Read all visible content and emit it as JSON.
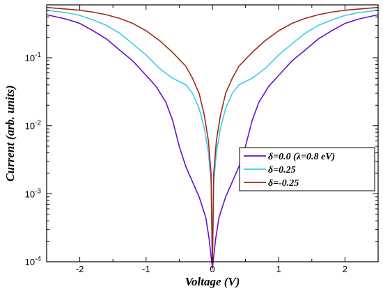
{
  "chart_data": {
    "type": "line",
    "title": "",
    "xlabel": "Voltage (V)",
    "ylabel": "Current (arb. units)",
    "xlim": [
      -2.5,
      2.5
    ],
    "ylim": [
      0.0001,
      0.6
    ],
    "y_scale": "log",
    "x_ticks": [
      {
        "value": -2,
        "label": "-2"
      },
      {
        "value": -1,
        "label": "-1"
      },
      {
        "value": 0,
        "label": "0"
      },
      {
        "value": 1,
        "label": "1"
      },
      {
        "value": 2,
        "label": "2"
      }
    ],
    "y_ticks": [
      {
        "value": 0.0001,
        "base": "10",
        "exp": "-4"
      },
      {
        "value": 0.001,
        "base": "10",
        "exp": "-3"
      },
      {
        "value": 0.01,
        "base": "10",
        "exp": "-2"
      },
      {
        "value": 0.1,
        "base": "10",
        "exp": "-1"
      }
    ],
    "grid": false,
    "legend_position": "lower-right",
    "series": [
      {
        "name": "δ=0.0  (λ=0.8 eV)",
        "color": "#6a0dcc",
        "x": [
          -2.5,
          -2.2,
          -2.0,
          -1.8,
          -1.6,
          -1.4,
          -1.2,
          -1.0,
          -0.85,
          -0.7,
          -0.6,
          -0.5,
          -0.4,
          -0.3,
          -0.2,
          -0.1,
          -0.05,
          0.0,
          0.05,
          0.1,
          0.2,
          0.3,
          0.4,
          0.5,
          0.6,
          0.7,
          0.85,
          1.0,
          1.2,
          1.4,
          1.6,
          1.8,
          2.0,
          2.2,
          2.5
        ],
        "y": [
          0.43,
          0.37,
          0.32,
          0.25,
          0.19,
          0.13,
          0.09,
          0.055,
          0.038,
          0.022,
          0.012,
          0.005,
          0.0025,
          0.0015,
          0.0009,
          0.00045,
          0.00022,
          8e-05,
          0.00022,
          0.00045,
          0.0009,
          0.0015,
          0.0025,
          0.005,
          0.012,
          0.022,
          0.038,
          0.055,
          0.09,
          0.13,
          0.19,
          0.25,
          0.32,
          0.37,
          0.43
        ]
      },
      {
        "name": "δ=0.25",
        "color": "#40c8f0",
        "x": [
          -2.5,
          -2.2,
          -2.0,
          -1.8,
          -1.6,
          -1.4,
          -1.2,
          -1.0,
          -0.8,
          -0.6,
          -0.4,
          -0.3,
          -0.2,
          -0.12,
          -0.06,
          -0.02,
          0.0,
          0.02,
          0.06,
          0.12,
          0.2,
          0.3,
          0.4,
          0.6,
          0.8,
          1.0,
          1.2,
          1.4,
          1.6,
          1.8,
          2.0,
          2.2,
          2.5
        ],
        "y": [
          0.5,
          0.46,
          0.42,
          0.36,
          0.3,
          0.23,
          0.16,
          0.11,
          0.07,
          0.05,
          0.04,
          0.03,
          0.018,
          0.009,
          0.004,
          0.0015,
          8e-05,
          0.0015,
          0.004,
          0.009,
          0.018,
          0.03,
          0.04,
          0.05,
          0.07,
          0.11,
          0.16,
          0.23,
          0.3,
          0.36,
          0.42,
          0.46,
          0.5
        ]
      },
      {
        "name": "δ=-0.25",
        "color": "#a02818",
        "x": [
          -2.5,
          -2.2,
          -2.0,
          -1.8,
          -1.6,
          -1.4,
          -1.2,
          -1.0,
          -0.8,
          -0.6,
          -0.4,
          -0.3,
          -0.2,
          -0.12,
          -0.06,
          -0.02,
          0.0,
          0.02,
          0.06,
          0.12,
          0.2,
          0.3,
          0.4,
          0.6,
          0.8,
          1.0,
          1.2,
          1.4,
          1.6,
          1.8,
          2.0,
          2.2,
          2.5
        ],
        "y": [
          0.55,
          0.52,
          0.5,
          0.47,
          0.43,
          0.38,
          0.32,
          0.25,
          0.18,
          0.12,
          0.075,
          0.05,
          0.03,
          0.014,
          0.006,
          0.002,
          8e-05,
          0.002,
          0.006,
          0.014,
          0.03,
          0.05,
          0.075,
          0.12,
          0.18,
          0.25,
          0.32,
          0.38,
          0.43,
          0.47,
          0.5,
          0.52,
          0.55
        ]
      }
    ]
  }
}
